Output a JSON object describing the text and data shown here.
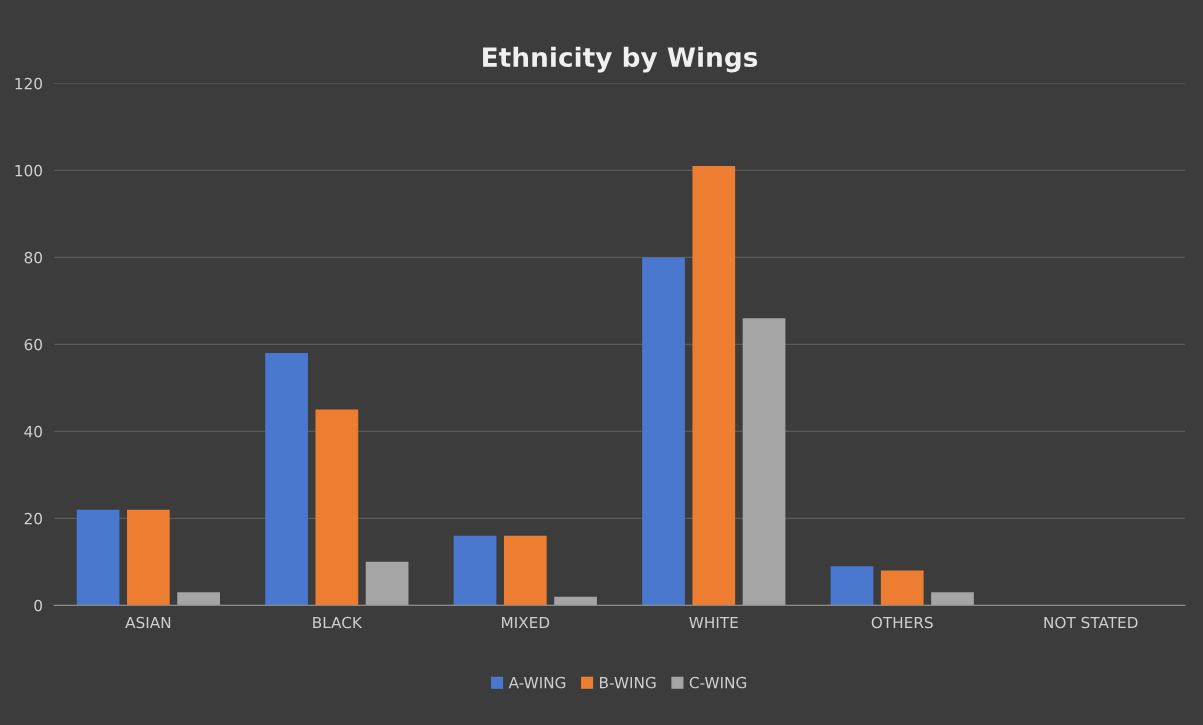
{
  "chart_data": {
    "type": "bar",
    "title": "Ethnicity by Wings",
    "categories": [
      "ASIAN",
      "BLACK",
      "MIXED",
      "WHITE",
      "OTHERS",
      "NOT STATED"
    ],
    "series": [
      {
        "name": "A-WING",
        "color": "#4a78cf",
        "values": [
          22,
          58,
          16,
          80,
          9,
          0
        ]
      },
      {
        "name": "B-WING",
        "color": "#ed7d31",
        "values": [
          22,
          45,
          16,
          101,
          8,
          0
        ]
      },
      {
        "name": "C-WING",
        "color": "#a5a5a5",
        "values": [
          3,
          10,
          2,
          66,
          3,
          0
        ]
      }
    ],
    "ylim": [
      0,
      120
    ],
    "yticks": [
      0,
      20,
      40,
      60,
      80,
      100,
      120
    ],
    "grid": "y",
    "legend": "bottom"
  }
}
